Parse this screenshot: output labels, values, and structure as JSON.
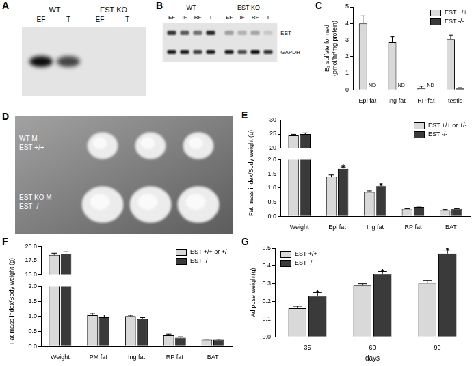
{
  "chart_data": [
    {
      "panel": "C",
      "type": "bar",
      "y_label": [
        "E₂ sulfate formed",
        "(pmol/hr/mg protein)"
      ],
      "categories": [
        "Epi fat",
        "Ing fat",
        "RP fat",
        "testis"
      ],
      "series": [
        {
          "name": "EST +/+",
          "color": "#d9d9d9",
          "values": [
            4.0,
            2.85,
            0.1,
            3.05
          ],
          "errors": [
            0.45,
            0.35,
            0.12,
            0.25
          ]
        },
        {
          "name": "EST -/-",
          "color": "#3a3a3a",
          "values": [
            null,
            null,
            null,
            0.08
          ],
          "errors": [
            null,
            null,
            null,
            0.05
          ],
          "value_labels": [
            "ND",
            "ND",
            "ND",
            null
          ]
        }
      ],
      "ylim": [
        0,
        5
      ],
      "yticks": [
        0,
        1,
        2,
        3,
        4,
        5
      ],
      "grid": false,
      "legend": "upper right"
    },
    {
      "panel": "E",
      "type": "bar",
      "y_label": "Fat mass index/Body weight (g)",
      "categories": [
        "Weight",
        "Epi fat",
        "Ing fat",
        "RP fat",
        "BAT"
      ],
      "series": [
        {
          "name": "EST +/+ or +/-",
          "color": "#d9d9d9",
          "values": [
            24.5,
            1.4,
            0.86,
            0.26,
            0.21
          ],
          "errors": [
            0.4,
            0.06,
            0.04,
            0.02,
            0.02
          ]
        },
        {
          "name": "EST -/-",
          "color": "#3a3a3a",
          "values": [
            25.0,
            1.68,
            1.06,
            0.32,
            0.26
          ],
          "errors": [
            0.4,
            0.06,
            0.04,
            0.02,
            0.02
          ]
        }
      ],
      "annotations": [
        {
          "category": "Epi fat",
          "series": "EST -/-",
          "text": "*"
        },
        {
          "category": "Ing fat",
          "series": "EST -/-",
          "text": "*"
        }
      ],
      "ylim": [
        0,
        30
      ],
      "ybreak": [
        2,
        20
      ],
      "yticks": [
        {
          "value": 0,
          "label": "0.0"
        },
        0.5,
        {
          "value": 1,
          "label": "1.0"
        },
        1.5,
        {
          "value": 2,
          "label": "2.0"
        },
        20,
        25,
        30
      ],
      "grid": false,
      "legend": "upper right"
    },
    {
      "panel": "F",
      "type": "bar",
      "y_label": "Fat mass index/Body weight (g)",
      "categories": [
        "Weight",
        "PM fat",
        "Ing fat",
        "RP fat",
        "BAT"
      ],
      "series": [
        {
          "name": "EST +/+ or +/-",
          "color": "#d9d9d9",
          "values": [
            18.5,
            1.03,
            1.0,
            0.37,
            0.22
          ],
          "errors": [
            0.3,
            0.07,
            0.03,
            0.04,
            0.02
          ]
        },
        {
          "name": "EST -/-",
          "color": "#3a3a3a",
          "values": [
            18.7,
            0.96,
            0.9,
            0.29,
            0.22
          ],
          "errors": [
            0.35,
            0.08,
            0.05,
            0.03,
            0.02
          ]
        }
      ],
      "ylim": [
        0,
        20
      ],
      "ybreak": [
        2,
        15
      ],
      "yticks": [
        {
          "value": 0,
          "label": "0.0"
        },
        0.5,
        {
          "value": 1,
          "label": "1.0"
        },
        1.5,
        {
          "value": 2,
          "label": "2.0"
        },
        {
          "value": 15,
          "label": "15.0"
        },
        17.5,
        {
          "value": 20,
          "label": "20.0"
        }
      ],
      "grid": false,
      "legend": "upper right"
    },
    {
      "panel": "G",
      "type": "bar",
      "y_label": "Adipose weight(g)",
      "x_label": "days",
      "categories": [
        "35",
        "60",
        "90"
      ],
      "series": [
        {
          "name": "EST +/+",
          "color": "#d9d9d9",
          "values": [
            0.163,
            0.29,
            0.305
          ],
          "errors": [
            0.008,
            0.01,
            0.012
          ]
        },
        {
          "name": "EST -/-",
          "color": "#3a3a3a",
          "values": [
            0.232,
            0.355,
            0.47
          ],
          "errors": [
            0.018,
            0.015,
            0.02
          ]
        }
      ],
      "annotations": [
        {
          "category": "35",
          "series": "EST -/-",
          "text": "*"
        },
        {
          "category": "60",
          "series": "EST -/-",
          "text": "*"
        },
        {
          "category": "90",
          "series": "EST -/-",
          "text": "*"
        }
      ],
      "ylim": [
        0,
        0.5
      ],
      "yticks": [
        {
          "value": 0,
          "label": "0.0"
        },
        0.1,
        0.2,
        0.3,
        0.4,
        0.5
      ],
      "grid": false,
      "legend": "upper left"
    }
  ],
  "blots": [
    {
      "panel": "A",
      "groups": [
        {
          "label": "WT",
          "lanes": [
            "EF",
            "T"
          ]
        },
        {
          "label": "EST KO",
          "lanes": [
            "EF",
            "T"
          ]
        }
      ],
      "rows": [
        {
          "bands": [
            0.95,
            0.7,
            0,
            0
          ]
        }
      ]
    },
    {
      "panel": "B",
      "groups": [
        {
          "label": "WT",
          "lanes": [
            "EF",
            "IF",
            "RF",
            "T"
          ]
        },
        {
          "label": "EST KO",
          "lanes": [
            "EF",
            "IF",
            "RF",
            "T"
          ]
        }
      ],
      "rows": [
        {
          "label": "EST",
          "bands": [
            0.75,
            0.6,
            0.5,
            0.8,
            0.3,
            0.22,
            0.28,
            0.12
          ]
        },
        {
          "label": "GAPDH",
          "bands": [
            0.85,
            0.85,
            0.7,
            0.85,
            0.85,
            0.65,
            0.9,
            0.75
          ]
        }
      ]
    }
  ],
  "photo": {
    "panel": "D",
    "rows": [
      {
        "label": [
          "WT M",
          "EST +/+"
        ],
        "count": 3
      },
      {
        "label": [
          "EST KO M",
          "EST -/-"
        ],
        "count": 3
      }
    ]
  }
}
